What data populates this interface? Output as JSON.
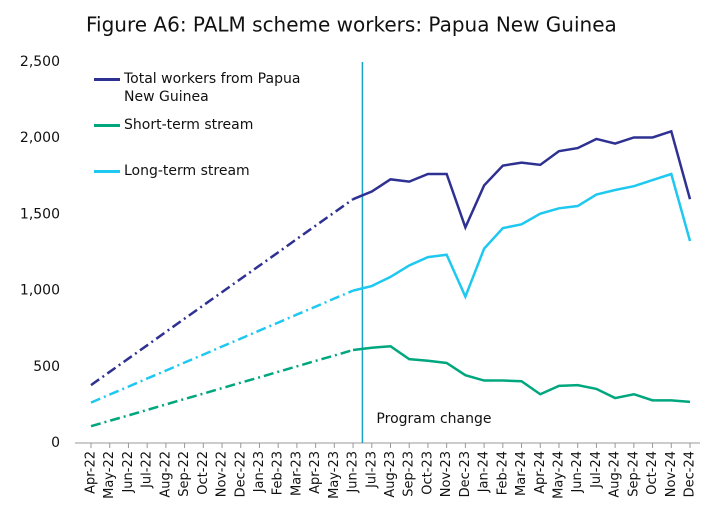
{
  "chart_data": {
    "type": "line",
    "title": "Figure A6: PALM scheme workers: Papua New Guinea",
    "categories": [
      "Apr-22",
      "May-22",
      "Jun-22",
      "Jul-22",
      "Aug-22",
      "Sep-22",
      "Oct-22",
      "Nov-22",
      "Dec-22",
      "Jan-23",
      "Feb-23",
      "Mar-23",
      "Apr-23",
      "May-23",
      "Jun-23",
      "Jul-23",
      "Aug-23",
      "Sep-23",
      "Oct-23",
      "Nov-23",
      "Dec-23",
      "Jan-24",
      "Feb-24",
      "Mar-24",
      "Apr-24",
      "May-24",
      "Jun-24",
      "Jul-24",
      "Aug-24",
      "Sep-24",
      "Oct-24",
      "Nov-24",
      "Dec-24"
    ],
    "series": [
      {
        "name": "Total workers from Papua New Guinea",
        "color": "#2e3192",
        "values": [
          380,
          467,
          554,
          641,
          729,
          816,
          903,
          990,
          1077,
          1164,
          1251,
          1339,
          1426,
          1513,
          1600,
          1650,
          1730,
          1715,
          1765,
          1765,
          1415,
          1690,
          1820,
          1840,
          1825,
          1915,
          1935,
          1995,
          1965,
          2005,
          2005,
          2045,
          1600
        ]
      },
      {
        "name": "Short-term stream",
        "color": "#00a77e",
        "values": [
          110,
          146,
          181,
          217,
          253,
          289,
          324,
          360,
          396,
          431,
          467,
          503,
          539,
          574,
          610,
          625,
          635,
          550,
          540,
          525,
          445,
          410,
          410,
          405,
          320,
          375,
          380,
          355,
          295,
          320,
          280,
          280,
          270
        ]
      },
      {
        "name": "Long-term stream",
        "color": "#1ec8f0",
        "values": [
          265,
          318,
          370,
          423,
          475,
          528,
          580,
          633,
          685,
          738,
          790,
          843,
          895,
          948,
          1000,
          1030,
          1090,
          1165,
          1220,
          1235,
          960,
          1275,
          1410,
          1435,
          1505,
          1540,
          1555,
          1630,
          1660,
          1685,
          1725,
          1765,
          1325
        ]
      }
    ],
    "annotation": {
      "text": "Program change",
      "after": "Jun-23",
      "color": "#1aa3c8"
    },
    "ylim": [
      0,
      2500
    ],
    "yticks": [
      0,
      {
        "value": 500,
        "label": "500"
      },
      {
        "value": 1000,
        "label": "1,000"
      },
      {
        "value": 1500,
        "label": "1,500"
      },
      {
        "value": 2000,
        "label": "2,000"
      },
      {
        "value": 2500,
        "label": "2,500"
      }
    ],
    "grid": false
  }
}
